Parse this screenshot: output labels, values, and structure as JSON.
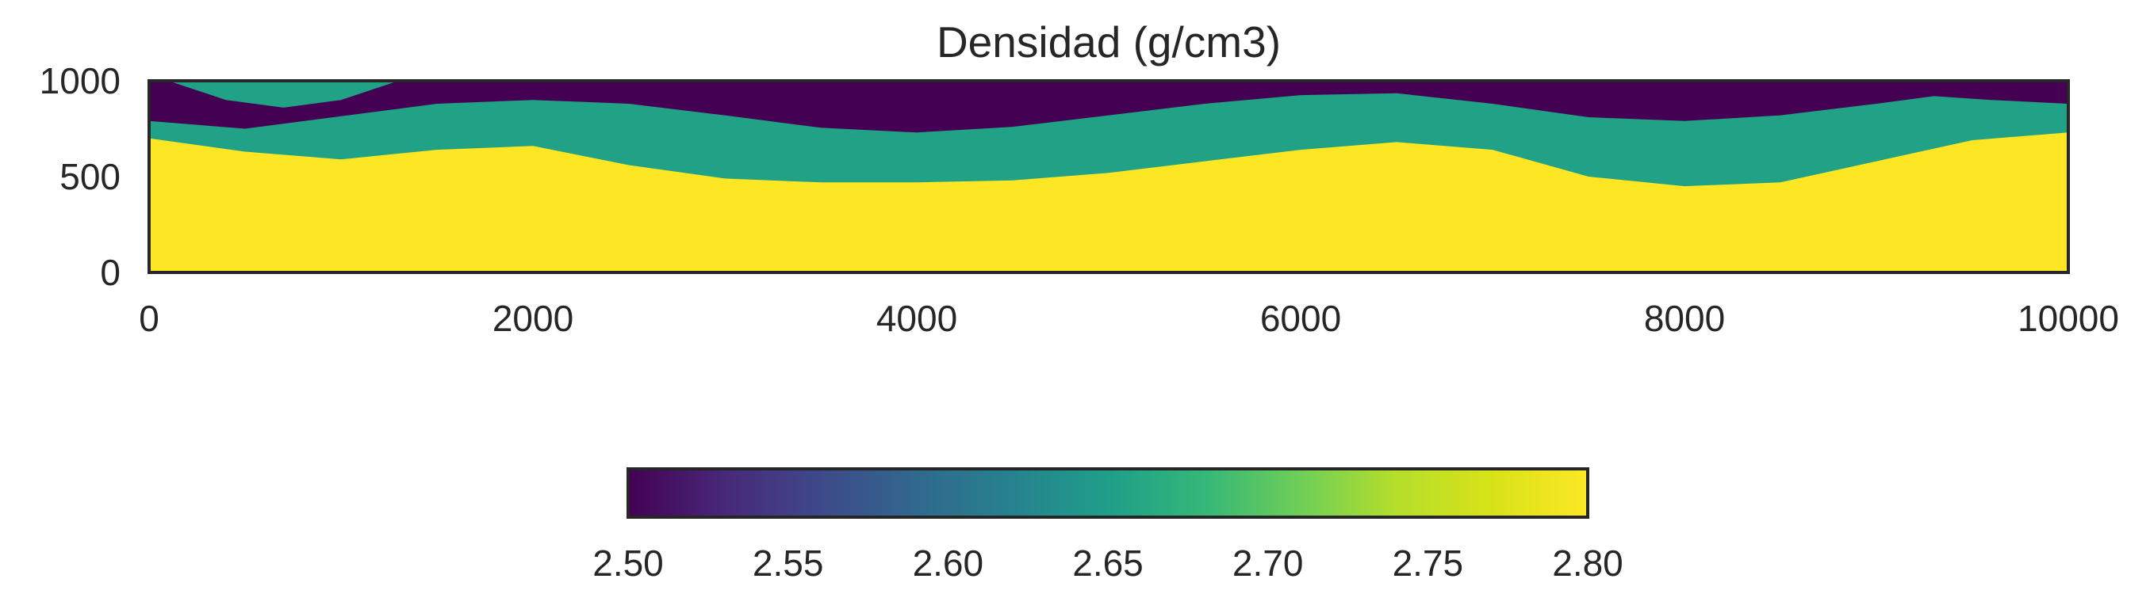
{
  "chart_data": {
    "type": "heatmap",
    "title": "Densidad (g/cm3)",
    "xlabel": "",
    "ylabel": "",
    "xlim": [
      0,
      10000
    ],
    "ylim": [
      0,
      1000
    ],
    "x_ticks": [
      0,
      2000,
      4000,
      6000,
      8000,
      10000
    ],
    "y_ticks": [
      0,
      500,
      1000
    ],
    "x_tick_labels": [
      "0",
      "2000",
      "4000",
      "6000",
      "8000",
      "10000"
    ],
    "y_tick_labels": [
      "0",
      "500",
      "1000"
    ],
    "grid": false,
    "colormap": "viridis",
    "colorbar": {
      "orientation": "horizontal",
      "position": "bottom",
      "range": [
        2.5,
        2.8
      ],
      "ticks": [
        2.5,
        2.55,
        2.6,
        2.65,
        2.7,
        2.75,
        2.8
      ],
      "tick_labels": [
        "2.50",
        "2.55",
        "2.60",
        "2.65",
        "2.70",
        "2.75",
        "2.80"
      ]
    },
    "layers": [
      {
        "value": 2.5,
        "color": "#440154",
        "region": "top of model down to upper boundary"
      },
      {
        "value": 2.65,
        "color": "#21a185",
        "region": "between upper boundary and lower boundary"
      },
      {
        "value": 2.8,
        "color": "#fde725",
        "region": "below lower boundary"
      }
    ],
    "upper_boundary": {
      "x": [
        0,
        500,
        1000,
        1500,
        2000,
        2500,
        3000,
        3500,
        4000,
        4500,
        5000,
        5500,
        6000,
        6500,
        7000,
        7500,
        8000,
        8500,
        9000,
        9300,
        9600,
        10000
      ],
      "y": [
        790,
        750,
        815,
        880,
        900,
        880,
        820,
        755,
        730,
        760,
        820,
        880,
        925,
        935,
        880,
        810,
        790,
        820,
        880,
        920,
        900,
        880
      ]
    },
    "lower_boundary": {
      "x": [
        0,
        500,
        1000,
        1500,
        2000,
        2500,
        3000,
        3500,
        4000,
        4500,
        5000,
        5500,
        6000,
        6500,
        7000,
        7500,
        8000,
        8500,
        9000,
        9500,
        10000
      ],
      "y": [
        700,
        630,
        590,
        640,
        660,
        560,
        490,
        470,
        470,
        480,
        520,
        580,
        640,
        680,
        640,
        500,
        450,
        470,
        580,
        690,
        730
      ]
    },
    "lens": {
      "value": 2.65,
      "x": [
        100,
        300,
        600,
        900,
        1100,
        1300,
        1000,
        700,
        400,
        100
      ],
      "y": [
        1000,
        1000,
        1000,
        1000,
        1000,
        1000,
        900,
        860,
        900,
        1000
      ]
    }
  }
}
